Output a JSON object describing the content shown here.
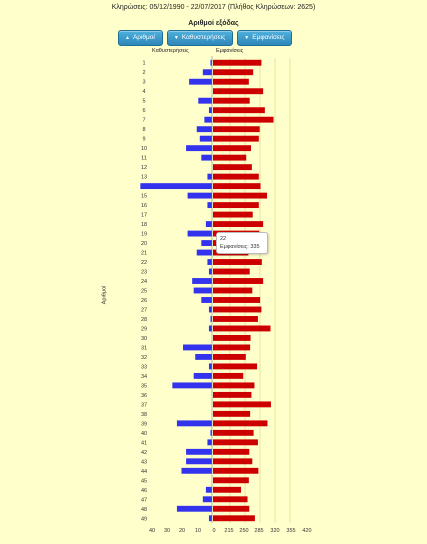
{
  "header": {
    "draws_text": "Κληρώσεις:      05/12/1990 - 22/07/2017  (Πλήθος Κληρώσεων: 2625)",
    "chart_title": "Αριθμοί εξόδας"
  },
  "buttons": [
    {
      "label": "Αριθμοί",
      "arrow": "▲"
    },
    {
      "label": "Καθυστερήσεις",
      "arrow": "▼"
    },
    {
      "label": "Εμφανίσεις",
      "arrow": "▼"
    }
  ],
  "tooltip": {
    "title": "22",
    "text": "Εμφανίσεις: 335"
  },
  "colors": {
    "delay": "#3333ee",
    "appear": "#cc0000",
    "grid": "#e8e0a0"
  },
  "chart_data": {
    "type": "bar",
    "orientation": "horizontal-diverging",
    "ylabel": "Αριθμοί",
    "left_axis_label": "Καθυστερήσεις",
    "right_axis_label": "Εμφανίσεις",
    "left_ticks": [
      "40",
      "30",
      "20",
      "10"
    ],
    "right_ticks": [
      "0",
      "215",
      "250",
      "285",
      "320",
      "355",
      "420"
    ],
    "categories": [
      "1",
      "2",
      "3",
      "4",
      "5",
      "6",
      "7",
      "8",
      "9",
      "10",
      "11",
      "12",
      "13",
      "14",
      "15",
      "16",
      "17",
      "18",
      "19",
      "20",
      "21",
      "22",
      "23",
      "24",
      "25",
      "26",
      "27",
      "28",
      "29",
      "30",
      "31",
      "32",
      "33",
      "34",
      "35",
      "36",
      "37",
      "38",
      "39",
      "40",
      "41",
      "42",
      "43",
      "44",
      "45",
      "46",
      "47",
      "48",
      "49"
    ],
    "series": [
      {
        "name": "Καθυστερήσεις",
        "values": [
          1,
          6,
          15,
          0,
          9,
          2,
          5,
          10,
          8,
          17,
          7,
          0,
          3,
          47,
          16,
          3,
          0,
          4,
          16,
          7,
          10,
          3,
          2,
          13,
          12,
          7,
          2,
          1,
          2,
          0,
          19,
          11,
          2,
          12,
          26,
          0,
          0,
          0,
          23,
          1,
          3,
          17,
          17,
          20,
          0,
          4,
          6,
          23,
          2
        ]
      },
      {
        "name": "Εμφανίσεις",
        "values": [
          334,
          315,
          305,
          338,
          307,
          342,
          362,
          330,
          328,
          310,
          299,
          312,
          328,
          332,
          347,
          328,
          314,
          338,
          329,
          321,
          304,
          335,
          307,
          338,
          313,
          331,
          334,
          326,
          355,
          309,
          308,
          298,
          324,
          292,
          318,
          311,
          356,
          308,
          348,
          316,
          326,
          306,
          313,
          327,
          305,
          287,
          302,
          306,
          319
        ]
      }
    ],
    "tooltip_category": "22"
  }
}
